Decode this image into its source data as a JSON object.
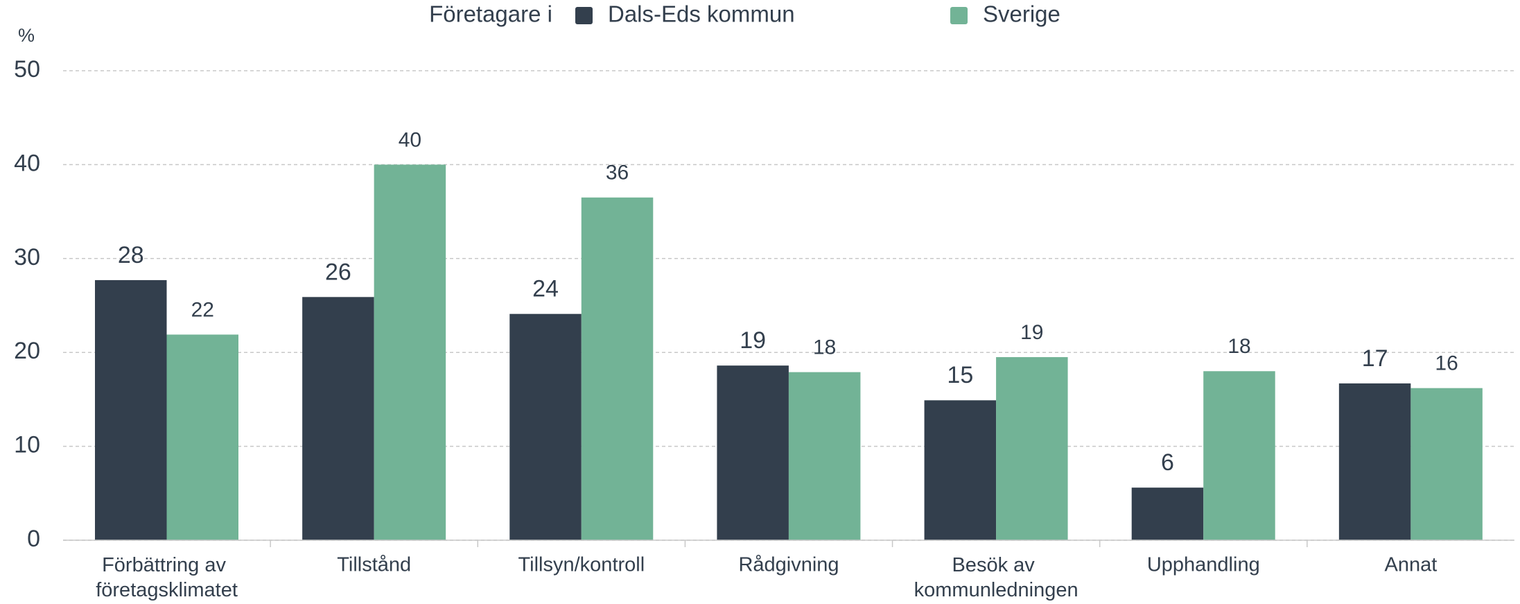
{
  "chart_data": {
    "type": "bar",
    "legend_title": "Företagare i",
    "y_label": "%",
    "categories": [
      "Förbättring av företagsklimatet",
      "Tillstånd",
      "Tillsyn/kontroll",
      "Rådgivning",
      "Besök av kommunledningen",
      "Upphandling",
      "Annat"
    ],
    "series": [
      {
        "name": "Dals-Eds kommun",
        "color": "#333f4d",
        "values": [
          27.7,
          25.9,
          24.1,
          18.6,
          14.9,
          5.6,
          16.7
        ],
        "value_labels": [
          "28",
          "26",
          "24",
          "19",
          "15",
          "6",
          "17"
        ]
      },
      {
        "name": "Sverige",
        "color": "#72b396",
        "values": [
          21.9,
          40,
          36.5,
          17.9,
          19.5,
          18,
          16.2
        ],
        "value_labels": [
          "22",
          "40",
          "36",
          "18",
          "19",
          "18",
          "16"
        ]
      }
    ],
    "ylim": [
      0,
      50
    ],
    "yticks": [
      0,
      10,
      20,
      30,
      40,
      50
    ],
    "grid": true
  }
}
